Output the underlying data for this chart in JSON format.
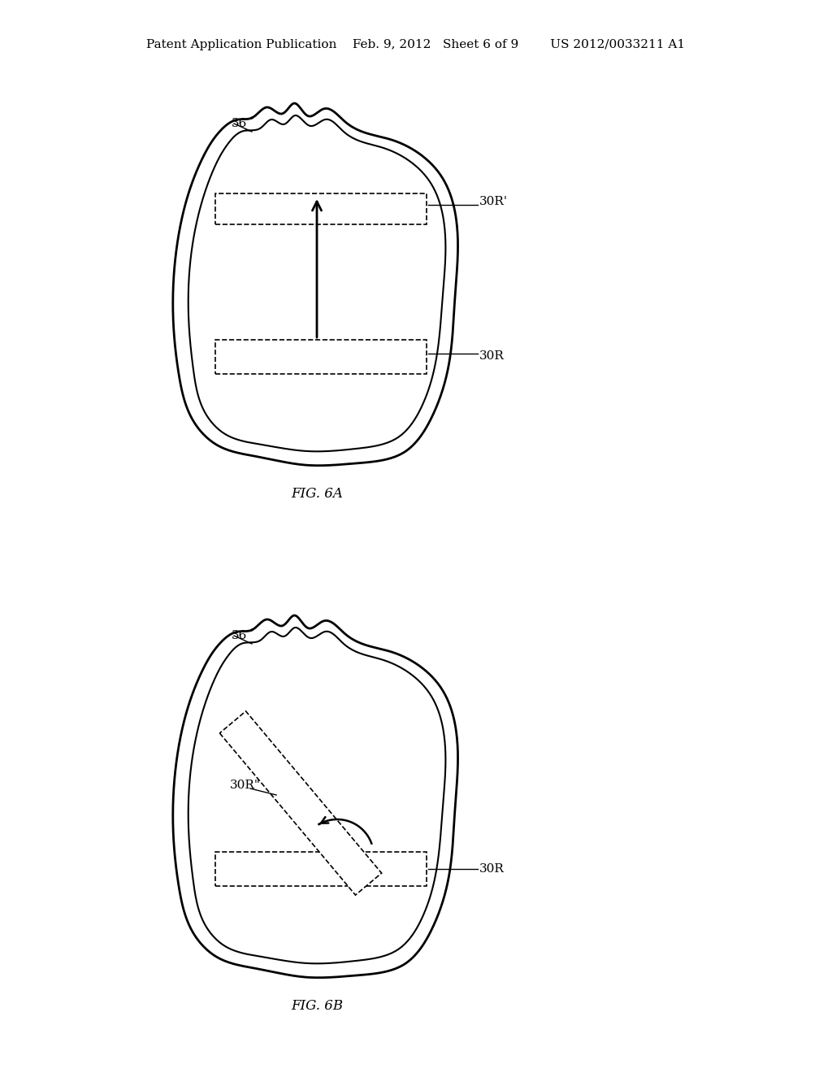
{
  "bg_color": "#ffffff",
  "header_text": "Patent Application Publication    Feb. 9, 2012   Sheet 6 of 9        US 2012/0033211 A1",
  "header_fontsize": 11,
  "fig6a_caption": "FIG. 6A",
  "fig6b_caption": "FIG. 6B",
  "label_36_6a": "36",
  "label_30R_prime_6a": "30R'",
  "label_30R_6a": "30R",
  "label_36_6b": "36",
  "label_30R_dprime_6b": "30R\"",
  "label_30R_6b": "30R"
}
